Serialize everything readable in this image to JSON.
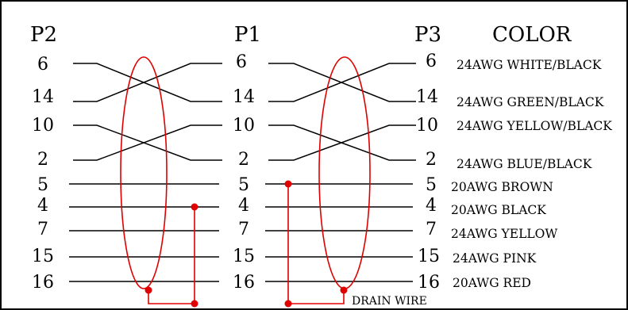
{
  "headers": {
    "p2": "P2",
    "p1": "P1",
    "p3": "P3",
    "color": "COLOR"
  },
  "pins": {
    "p2": [
      "6",
      "14",
      "10",
      "2",
      "5",
      "4",
      "7",
      "15",
      "16"
    ],
    "p1": [
      "6",
      "14",
      "10",
      "2",
      "5",
      "4",
      "7",
      "15",
      "16"
    ],
    "p3": [
      "6",
      "14",
      "10",
      "2",
      "5",
      "4",
      "7",
      "15",
      "16"
    ]
  },
  "colors": [
    "24AWG WHITE/BLACK",
    "24AWG GREEN/BLACK",
    "24AWG YELLOW/BLACK",
    "24AWG BLUE/BLACK",
    "20AWG BROWN",
    "20AWG BLACK",
    "24AWG YELLOW",
    "24AWG PINK",
    "20AWG RED"
  ],
  "drain_label": "DRAIN WIRE",
  "style": {
    "wire_color": "#000000",
    "shield_color": "#e00000"
  }
}
